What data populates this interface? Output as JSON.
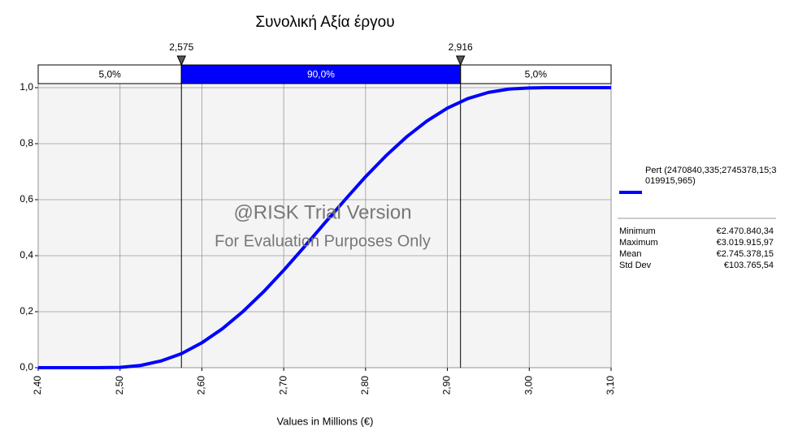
{
  "chart_data": {
    "type": "line",
    "title": "Συνολική Αξία έργου",
    "x_label": "Values in Millions (€)",
    "xlim": [
      2.4,
      3.1
    ],
    "xticks": [
      {
        "value": 2.4,
        "label": "2,40"
      },
      {
        "value": 2.5,
        "label": "2,50"
      },
      {
        "value": 2.6,
        "label": "2,60"
      },
      {
        "value": 2.7,
        "label": "2,70"
      },
      {
        "value": 2.8,
        "label": "2,80"
      },
      {
        "value": 2.9,
        "label": "2,90"
      },
      {
        "value": 3.0,
        "label": "3,00"
      },
      {
        "value": 3.1,
        "label": "3,10"
      }
    ],
    "ylim": [
      0,
      1
    ],
    "yticks": [
      {
        "value": 0,
        "label": "0,0"
      },
      {
        "value": 0.2,
        "label": "0,2"
      },
      {
        "value": 0.4,
        "label": "0,4"
      },
      {
        "value": 0.6,
        "label": "0,6"
      },
      {
        "value": 0.8,
        "label": "0,8"
      },
      {
        "value": 1,
        "label": "1,0"
      }
    ],
    "grid": true,
    "x": [
      2.4,
      2.47,
      2.5,
      2.525,
      2.55,
      2.575,
      2.6,
      2.625,
      2.65,
      2.675,
      2.7,
      2.725,
      2.75,
      2.775,
      2.8,
      2.825,
      2.85,
      2.875,
      2.9,
      2.925,
      2.95,
      2.975,
      3.0,
      3.02,
      3.1
    ],
    "series": [
      {
        "name": "Pert (2470840,335;2745378,15;3019915,965)",
        "color": "#0000ff",
        "values": [
          0,
          0,
          0.001,
          0.008,
          0.024,
          0.05,
          0.089,
          0.139,
          0.2,
          0.27,
          0.348,
          0.431,
          0.516,
          0.6,
          0.682,
          0.757,
          0.824,
          0.881,
          0.927,
          0.961,
          0.983,
          0.995,
          0.999,
          1,
          1
        ]
      }
    ],
    "delimiters": [
      {
        "value": 2.575,
        "label": "2,575"
      },
      {
        "value": 2.916,
        "label": "2,916"
      }
    ],
    "regions": {
      "values": [
        5,
        90,
        5
      ],
      "value_labels": [
        "5,0%",
        "90,0%",
        "5,0%"
      ],
      "highlight_color": "#0000ff"
    },
    "stats": [
      [
        "Minimum",
        "€2.470.840,34"
      ],
      [
        "Maximum",
        "€3.019.915,97"
      ],
      [
        "Mean",
        "€2.745.378,15"
      ],
      [
        "Std Dev",
        "€103.765,54"
      ]
    ],
    "annotations": [
      "@RISK Trial Version",
      "For Evaluation Purposes Only"
    ]
  }
}
